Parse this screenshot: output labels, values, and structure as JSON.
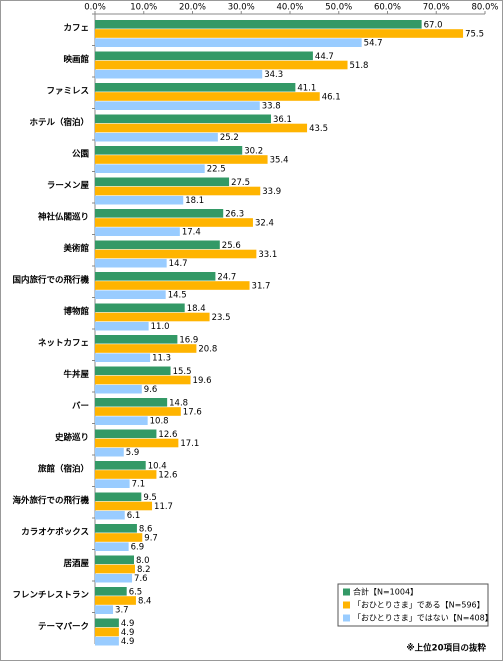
{
  "chart_data": {
    "type": "bar",
    "orientation": "horizontal",
    "categories": [
      "カフェ",
      "映画館",
      "ファミレス",
      "ホテル（宿泊）",
      "公園",
      "ラーメン屋",
      "神社仏閣巡り",
      "美術館",
      "国内旅行での飛行機",
      "博物館",
      "ネットカフェ",
      "牛丼屋",
      "バー",
      "史跡巡り",
      "旅館（宿泊）",
      "海外旅行での飛行機",
      "カラオケボックス",
      "居酒屋",
      "フレンチレストラン",
      "テーマパーク"
    ],
    "series": [
      {
        "name": "合計【N=1004】",
        "color": "#339966",
        "values": [
          67.0,
          44.7,
          41.1,
          36.1,
          30.2,
          27.5,
          26.3,
          25.6,
          24.7,
          18.4,
          16.9,
          15.5,
          14.8,
          12.6,
          10.4,
          9.5,
          8.6,
          8.0,
          6.5,
          4.9
        ],
        "value_labels": [
          "67.0",
          "44.7",
          "41.1",
          "36.1",
          "30.2",
          "27.5",
          "26.3",
          "25.6",
          "24.7",
          "18.4",
          "16.9",
          "15.5",
          "14.8",
          "12.6",
          "10.4",
          "9.5",
          "8.6",
          "8.0",
          "6.5",
          "4.9"
        ]
      },
      {
        "name": "「おひとりさま」である【N=596】",
        "color": "#ffb400",
        "values": [
          75.5,
          51.8,
          46.1,
          43.5,
          35.4,
          33.9,
          32.4,
          33.1,
          31.7,
          23.5,
          20.8,
          19.6,
          17.6,
          17.1,
          12.6,
          11.7,
          9.7,
          8.2,
          8.4,
          4.9
        ],
        "value_labels": [
          "75.5",
          "51.8",
          "46.1",
          "43.5",
          "35.4",
          "33.9",
          "32.4",
          "33.1",
          "31.7",
          "23.5",
          "20.8",
          "19.6",
          "17.6",
          "17.1",
          "12.6",
          "11.7",
          "9.7",
          "8.2",
          "8.4",
          "4.9"
        ]
      },
      {
        "name": "「おひとりさま」ではない【N=408】",
        "color": "#99ccff",
        "values": [
          54.7,
          34.3,
          33.8,
          25.2,
          22.5,
          18.1,
          17.4,
          14.7,
          14.5,
          11.0,
          11.3,
          9.6,
          10.8,
          5.9,
          7.1,
          6.1,
          6.9,
          7.6,
          3.7,
          4.9
        ],
        "value_labels": [
          "54.7",
          "34.3",
          "33.8",
          "25.2",
          "22.5",
          "18.1",
          "17.4",
          "14.7",
          "14.5",
          "11.0",
          "11.3",
          "9.6",
          "10.8",
          "5.9",
          "7.1",
          "6.1",
          "6.9",
          "7.6",
          "3.7",
          "4.9"
        ]
      }
    ],
    "xlim": [
      0,
      80
    ],
    "xticks": [
      {
        "value": 0,
        "label": "0.0%"
      },
      {
        "value": 10,
        "label": "10.0%"
      },
      {
        "value": 20,
        "label": "20.0%"
      },
      {
        "value": 30,
        "label": "30.0%"
      },
      {
        "value": 40,
        "label": "40.0%"
      },
      {
        "value": 50,
        "label": "50.0%"
      },
      {
        "value": 60,
        "label": "60.0%"
      },
      {
        "value": 70,
        "label": "70.0%"
      },
      {
        "value": 80,
        "label": "80.0%"
      }
    ],
    "legend": "lower-right",
    "note": "※上位20項目の抜粋"
  }
}
